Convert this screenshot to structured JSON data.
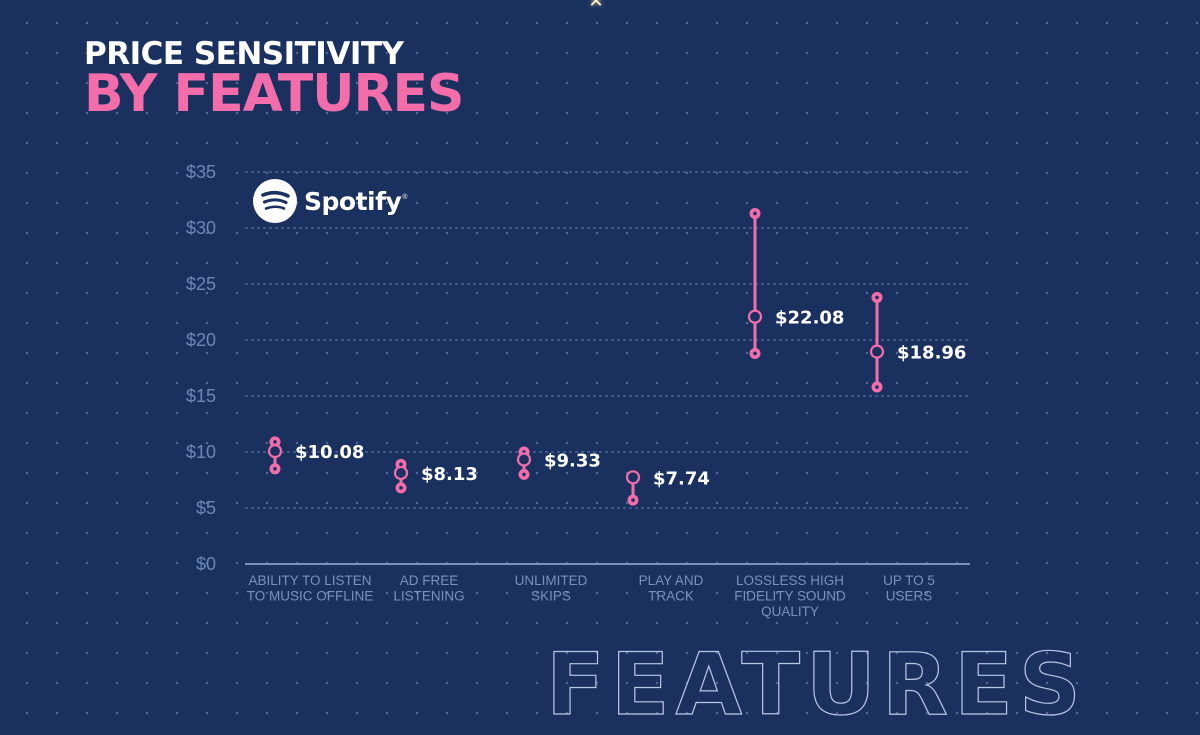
{
  "header": {
    "title_line1": "PRICE SENSITIVITY",
    "title_line2": "BY FEATURES",
    "title_line1_color": "#ffffff",
    "title_line2_color": "#f26daa"
  },
  "brand": {
    "name": "Spotify",
    "registered": "®",
    "logo_icon": "spotify-logo-icon"
  },
  "decoration": {
    "top_sparkle_icon": "sparkle-icon",
    "top_sparkle_glyph": "✕",
    "bottom_outline_word": "FEATURES"
  },
  "colors": {
    "background": "#1a3160",
    "accent": "#f26daa",
    "grid": "#5a73a6",
    "axis": "#7a8fbd",
    "value_label": "#ffffff"
  },
  "chart_data": {
    "type": "range-dot",
    "title": "Price Sensitivity by Features",
    "xlabel": "",
    "ylabel": "",
    "ylim": [
      0,
      35
    ],
    "yticks": [
      0,
      5,
      10,
      15,
      20,
      25,
      30,
      35
    ],
    "ytick_labels": [
      "$0",
      "$5",
      "$10",
      "$15",
      "$20",
      "$25",
      "$30",
      "$35"
    ],
    "grid": true,
    "legend": "none",
    "categories": [
      [
        "ABILITY TO LISTEN",
        "TO MUSIC OFFLINE"
      ],
      [
        "AD FREE",
        "LISTENING"
      ],
      [
        "UNLIMITED",
        "SKIPS"
      ],
      [
        "PLAY AND",
        "TRACK"
      ],
      [
        "LOSSLESS HIGH",
        "FIDELITY SOUND",
        "QUALITY"
      ],
      [
        "UP TO 5",
        "USERS"
      ]
    ],
    "series": [
      {
        "name": "high",
        "values": [
          10.9,
          8.9,
          10.0,
          7.74,
          31.3,
          23.8
        ]
      },
      {
        "name": "value",
        "values": [
          10.08,
          8.13,
          9.33,
          7.74,
          22.08,
          18.96
        ]
      },
      {
        "name": "low",
        "values": [
          8.5,
          6.8,
          8.0,
          5.7,
          18.8,
          15.8
        ]
      }
    ],
    "value_labels": [
      "$10.08",
      "$8.13",
      "$9.33",
      "$7.74",
      "$22.08",
      "$18.96"
    ]
  }
}
